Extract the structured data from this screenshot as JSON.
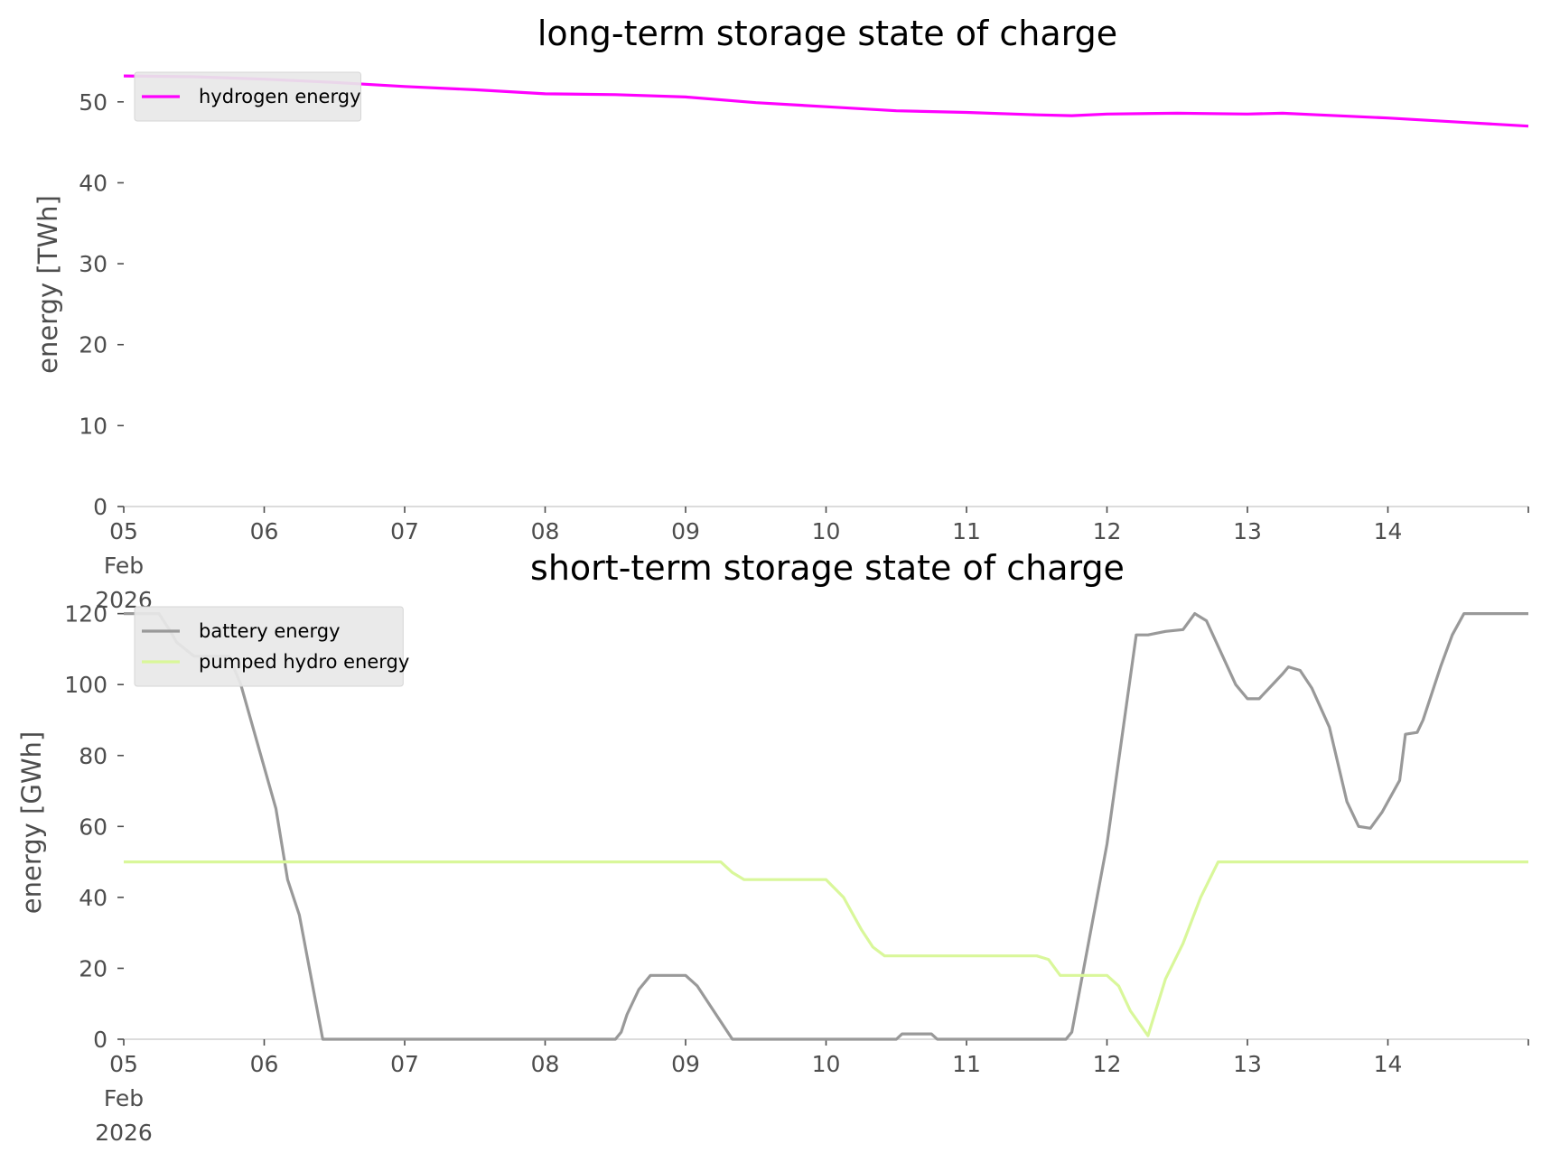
{
  "chart_data": [
    {
      "type": "line",
      "title": "long-term storage state of charge",
      "ylabel": "energy [TWh]",
      "xlabel": "",
      "xlim": [
        "2026-02-05",
        "2026-02-14 24:00"
      ],
      "ylim": [
        0,
        55
      ],
      "x_ticks": [
        {
          "date": "2026-02-05",
          "label": [
            "05",
            "Feb",
            "2026"
          ]
        },
        {
          "date": "2026-02-06",
          "label": [
            "06"
          ]
        },
        {
          "date": "2026-02-07",
          "label": [
            "07"
          ]
        },
        {
          "date": "2026-02-08",
          "label": [
            "08"
          ]
        },
        {
          "date": "2026-02-09",
          "label": [
            "09"
          ]
        },
        {
          "date": "2026-02-10",
          "label": [
            "10"
          ]
        },
        {
          "date": "2026-02-11",
          "label": [
            "11"
          ]
        },
        {
          "date": "2026-02-12",
          "label": [
            "12"
          ]
        },
        {
          "date": "2026-02-13",
          "label": [
            "13"
          ]
        },
        {
          "date": "2026-02-14",
          "label": [
            "14"
          ]
        }
      ],
      "y_ticks": [
        "0",
        "10",
        "20",
        "30",
        "40",
        "50"
      ],
      "legend": "top-left",
      "grid": false,
      "series": [
        {
          "name": "hydrogen energy",
          "color": "#ff00ff",
          "points": [
            [
              "2026-02-05 00:00",
              53.2
            ],
            [
              "2026-02-05 12:00",
              53.1
            ],
            [
              "2026-02-06 00:00",
              52.8
            ],
            [
              "2026-02-06 12:00",
              52.4
            ],
            [
              "2026-02-07 00:00",
              51.9
            ],
            [
              "2026-02-07 12:00",
              51.5
            ],
            [
              "2026-02-08 00:00",
              51.0
            ],
            [
              "2026-02-08 12:00",
              50.9
            ],
            [
              "2026-02-09 00:00",
              50.6
            ],
            [
              "2026-02-09 12:00",
              49.9
            ],
            [
              "2026-02-10 00:00",
              49.4
            ],
            [
              "2026-02-10 12:00",
              48.9
            ],
            [
              "2026-02-11 00:00",
              48.7
            ],
            [
              "2026-02-11 12:00",
              48.4
            ],
            [
              "2026-02-11 18:00",
              48.3
            ],
            [
              "2026-02-12 00:00",
              48.5
            ],
            [
              "2026-02-12 12:00",
              48.6
            ],
            [
              "2026-02-13 00:00",
              48.5
            ],
            [
              "2026-02-13 06:00",
              48.6
            ],
            [
              "2026-02-13 12:00",
              48.4
            ],
            [
              "2026-02-14 00:00",
              48.0
            ],
            [
              "2026-02-14 12:00",
              47.5
            ],
            [
              "2026-02-14 24:00",
              47.0
            ]
          ]
        }
      ]
    },
    {
      "type": "line",
      "title": "short-term storage state of charge",
      "ylabel": "energy [GWh]",
      "xlabel": "",
      "xlim": [
        "2026-02-05",
        "2026-02-14 24:00"
      ],
      "ylim": [
        0,
        125
      ],
      "x_ticks": [
        {
          "date": "2026-02-05",
          "label": [
            "05",
            "Feb",
            "2026"
          ]
        },
        {
          "date": "2026-02-06",
          "label": [
            "06"
          ]
        },
        {
          "date": "2026-02-07",
          "label": [
            "07"
          ]
        },
        {
          "date": "2026-02-08",
          "label": [
            "08"
          ]
        },
        {
          "date": "2026-02-09",
          "label": [
            "09"
          ]
        },
        {
          "date": "2026-02-10",
          "label": [
            "10"
          ]
        },
        {
          "date": "2026-02-11",
          "label": [
            "11"
          ]
        },
        {
          "date": "2026-02-12",
          "label": [
            "12"
          ]
        },
        {
          "date": "2026-02-13",
          "label": [
            "13"
          ]
        },
        {
          "date": "2026-02-14",
          "label": [
            "14"
          ]
        }
      ],
      "y_ticks": [
        "0",
        "20",
        "40",
        "60",
        "80",
        "100",
        "120"
      ],
      "legend": "top-left",
      "grid": false,
      "series": [
        {
          "name": "battery energy",
          "color": "#999999",
          "points": [
            [
              "2026-02-05 00:00",
              120
            ],
            [
              "2026-02-05 06:00",
              120
            ],
            [
              "2026-02-05 08:00",
              115
            ],
            [
              "2026-02-05 09:00",
              112
            ],
            [
              "2026-02-05 12:00",
              108
            ],
            [
              "2026-02-05 18:00",
              108
            ],
            [
              "2026-02-05 20:00",
              100
            ],
            [
              "2026-02-06 02:00",
              65
            ],
            [
              "2026-02-06 04:00",
              45
            ],
            [
              "2026-02-06 06:00",
              35
            ],
            [
              "2026-02-06 10:00",
              0
            ],
            [
              "2026-02-08 12:00",
              0
            ],
            [
              "2026-02-08 13:00",
              2
            ],
            [
              "2026-02-08 14:00",
              7
            ],
            [
              "2026-02-08 16:00",
              14
            ],
            [
              "2026-02-08 18:00",
              18
            ],
            [
              "2026-02-09 00:00",
              18
            ],
            [
              "2026-02-09 02:00",
              15
            ],
            [
              "2026-02-09 04:00",
              10
            ],
            [
              "2026-02-09 08:00",
              0
            ],
            [
              "2026-02-10 12:00",
              0
            ],
            [
              "2026-02-10 13:00",
              1.5
            ],
            [
              "2026-02-10 18:00",
              1.5
            ],
            [
              "2026-02-10 19:00",
              0
            ],
            [
              "2026-02-11 17:00",
              0
            ],
            [
              "2026-02-11 18:00",
              2
            ],
            [
              "2026-02-12 00:00",
              55
            ],
            [
              "2026-02-12 05:00",
              114
            ],
            [
              "2026-02-12 07:00",
              114
            ],
            [
              "2026-02-12 10:00",
              115
            ],
            [
              "2026-02-12 13:00",
              115.5
            ],
            [
              "2026-02-12 15:00",
              120
            ],
            [
              "2026-02-12 17:00",
              118
            ],
            [
              "2026-02-12 22:00",
              100
            ],
            [
              "2026-02-13 00:00",
              96
            ],
            [
              "2026-02-13 02:00",
              96
            ],
            [
              "2026-02-13 06:00",
              103
            ],
            [
              "2026-02-13 07:00",
              105
            ],
            [
              "2026-02-13 09:00",
              104
            ],
            [
              "2026-02-13 11:00",
              99
            ],
            [
              "2026-02-13 14:00",
              88
            ],
            [
              "2026-02-13 17:00",
              67
            ],
            [
              "2026-02-13 19:00",
              60
            ],
            [
              "2026-02-13 21:00",
              59.5
            ],
            [
              "2026-02-13 23:00",
              64
            ],
            [
              "2026-02-14 02:00",
              73
            ],
            [
              "2026-02-14 03:00",
              86
            ],
            [
              "2026-02-14 05:00",
              86.5
            ],
            [
              "2026-02-14 06:00",
              90
            ],
            [
              "2026-02-14 09:00",
              105
            ],
            [
              "2026-02-14 11:00",
              114
            ],
            [
              "2026-02-14 13:00",
              120
            ],
            [
              "2026-02-14 24:00",
              120
            ]
          ]
        },
        {
          "name": "pumped hydro energy",
          "color": "#d9f79a",
          "points": [
            [
              "2026-02-05 00:00",
              50
            ],
            [
              "2026-02-09 06:00",
              50
            ],
            [
              "2026-02-09 08:00",
              47
            ],
            [
              "2026-02-09 10:00",
              45
            ],
            [
              "2026-02-09 14:00",
              45
            ],
            [
              "2026-02-10 00:00",
              45
            ],
            [
              "2026-02-10 03:00",
              40
            ],
            [
              "2026-02-10 06:00",
              31
            ],
            [
              "2026-02-10 08:00",
              26
            ],
            [
              "2026-02-10 10:00",
              23.5
            ],
            [
              "2026-02-11 12:00",
              23.5
            ],
            [
              "2026-02-11 14:00",
              22.5
            ],
            [
              "2026-02-11 16:00",
              18
            ],
            [
              "2026-02-12 00:00",
              18
            ],
            [
              "2026-02-12 02:00",
              15
            ],
            [
              "2026-02-12 04:00",
              8
            ],
            [
              "2026-02-12 07:00",
              1
            ],
            [
              "2026-02-12 10:00",
              17
            ],
            [
              "2026-02-12 13:00",
              27
            ],
            [
              "2026-02-12 16:00",
              40
            ],
            [
              "2026-02-12 19:00",
              50
            ],
            [
              "2026-02-14 24:00",
              50
            ]
          ]
        }
      ]
    }
  ]
}
